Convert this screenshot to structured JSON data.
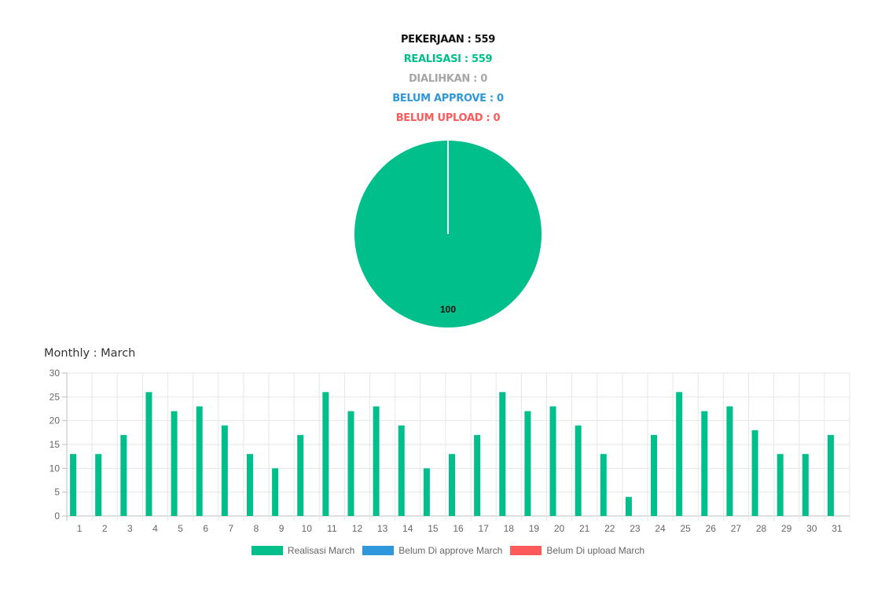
{
  "summary": {
    "pekerjaan": "PEKERJAAN : 559",
    "realisasi": "REALISASI : 559",
    "dialihkan": "DIALIHKAN : 0",
    "belum_approve": "BELUM APPROVE : 0",
    "belum_upload": "BELUM UPLOAD : 0"
  },
  "colors": {
    "realisasi": "#00bf8a",
    "belum_approve": "#2f97db",
    "belum_upload": "#ff5a5a",
    "dialihkan": "#a6a6a6"
  },
  "monthly_title": "Monthly : March",
  "legend": [
    {
      "label": "Realisasi March",
      "color": "#00bf8a"
    },
    {
      "label": "Belum Di approve March",
      "color": "#2f97db"
    },
    {
      "label": "Belum Di upload March",
      "color": "#ff5a5a"
    }
  ],
  "chart_data": [
    {
      "type": "pie",
      "slices": [
        {
          "name": "Realisasi",
          "value": 100,
          "color": "#00bf8a"
        }
      ],
      "data_label": "100"
    },
    {
      "type": "bar",
      "title": "Monthly : March",
      "categories": [
        "1",
        "2",
        "3",
        "4",
        "5",
        "6",
        "7",
        "8",
        "9",
        "10",
        "11",
        "12",
        "13",
        "14",
        "15",
        "16",
        "17",
        "18",
        "19",
        "20",
        "21",
        "22",
        "23",
        "24",
        "25",
        "26",
        "27",
        "28",
        "29",
        "30",
        "31"
      ],
      "series": [
        {
          "name": "Realisasi March",
          "color": "#00bf8a",
          "values": [
            13,
            13,
            17,
            26,
            22,
            23,
            19,
            13,
            10,
            17,
            26,
            22,
            23,
            19,
            10,
            13,
            17,
            26,
            22,
            23,
            19,
            13,
            4,
            17,
            26,
            22,
            23,
            18,
            13,
            13,
            17
          ]
        },
        {
          "name": "Belum Di approve March",
          "color": "#2f97db",
          "values": [
            0,
            0,
            0,
            0,
            0,
            0,
            0,
            0,
            0,
            0,
            0,
            0,
            0,
            0,
            0,
            0,
            0,
            0,
            0,
            0,
            0,
            0,
            0,
            0,
            0,
            0,
            0,
            0,
            0,
            0,
            0
          ]
        },
        {
          "name": "Belum Di upload March",
          "color": "#ff5a5a",
          "values": [
            0,
            0,
            0,
            0,
            0,
            0,
            0,
            0,
            0,
            0,
            0,
            0,
            0,
            0,
            0,
            0,
            0,
            0,
            0,
            0,
            0,
            0,
            0,
            0,
            0,
            0,
            0,
            0,
            0,
            0,
            0
          ]
        }
      ],
      "ylim": [
        0,
        30
      ],
      "yticks": [
        0,
        5,
        10,
        15,
        20,
        25,
        30
      ],
      "grid": true,
      "legend": "bottom"
    }
  ]
}
